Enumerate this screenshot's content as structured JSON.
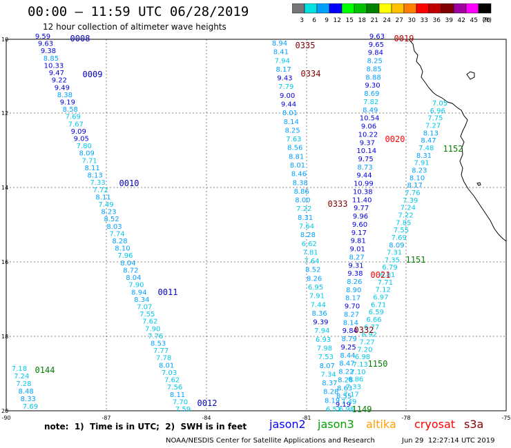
{
  "header": {
    "title": "00:00 – 11:59 UTC 06/28/2019",
    "subtitle": "12 hour collection of altimeter wave heights"
  },
  "legend": {
    "values": [
      "3",
      "6",
      "9",
      "12",
      "15",
      "18",
      "21",
      "24",
      "27",
      "30",
      "33",
      "36",
      "39",
      "42",
      "45",
      "70"
    ],
    "unit": "(ft)",
    "colors": [
      "#777777",
      "#00e0e0",
      "#00a0ff",
      "#0000ff",
      "#00ff00",
      "#00c000",
      "#008000",
      "#ffff00",
      "#ffc000",
      "#ff8000",
      "#ff0000",
      "#c00000",
      "#800000",
      "#a000a0",
      "#ff00ff",
      "#000000"
    ]
  },
  "map": {
    "lat_labels": [
      "10",
      "12",
      "14",
      "16",
      "18",
      "20"
    ],
    "lon_labels": [
      "-90",
      "-87",
      "-84",
      "-81",
      "-78",
      "-75"
    ]
  },
  "passes": [
    {
      "label": "0008",
      "color": "#0000c0"
    },
    {
      "label": "0009",
      "color": "#0000c0"
    },
    {
      "label": "0010",
      "color": "#0000c0"
    },
    {
      "label": "0011",
      "color": "#0000c0"
    },
    {
      "label": "0012",
      "color": "#0000c0"
    },
    {
      "label": "0144",
      "color": "#008000"
    },
    {
      "label": "0335",
      "color": "#800000"
    },
    {
      "label": "0334",
      "color": "#800000"
    },
    {
      "label": "0333",
      "color": "#800000"
    },
    {
      "label": "0332",
      "color": "#800000"
    },
    {
      "label": "0019",
      "color": "#c00000"
    },
    {
      "label": "0020",
      "color": "#ff0000"
    },
    {
      "label": "0021",
      "color": "#ff0000"
    },
    {
      "label": "1152",
      "color": "#008000"
    },
    {
      "label": "1151",
      "color": "#008000"
    },
    {
      "label": "1150",
      "color": "#008000"
    },
    {
      "label": "1149",
      "color": "#008000"
    }
  ],
  "tracks": [
    {
      "name": "track-a",
      "values": [
        "9.59",
        "9.63",
        "9.38",
        "8.85",
        "10.33",
        "9.47",
        "9.22",
        "9.49",
        "8.38",
        "9.19",
        "8.58",
        "7.69",
        "7.67",
        "9.09",
        "9.05",
        "7.80",
        "8.09",
        "7.71",
        "8.11",
        "8.13",
        "7.33",
        "7.72",
        "8.11",
        "7.49",
        "8.23",
        "8.52",
        "8.03",
        "7.74",
        "8.28",
        "8.10",
        "7.96",
        "8.04",
        "8.72",
        "8.04",
        "7.90",
        "8.94",
        "8.34",
        "7.07",
        "7.55",
        "7.62",
        "7.90",
        "7.76",
        "8.53",
        "7.77",
        "7.78",
        "8.01",
        "7.03",
        "7.62",
        "7.56",
        "8.11",
        "7.70",
        "7.59"
      ]
    },
    {
      "name": "track-b",
      "values": [
        "7.18",
        "7.24",
        "7.28",
        "8.48",
        "8.33",
        "7.69"
      ]
    },
    {
      "name": "track-c",
      "values": [
        "8.94",
        "8.41",
        "7.94",
        "8.17",
        "9.43",
        "7.79",
        "9.00",
        "9.44",
        "8.01",
        "8.14",
        "8.25",
        "7.63",
        "8.56",
        "8.81",
        "8.01",
        "8.46",
        "8.38",
        "8.86",
        "8.00",
        "7.22",
        "8.31",
        "7.64",
        "8.28",
        "6.62",
        "7.81",
        "7.64",
        "8.52",
        "8.26",
        "6.95",
        "7.91",
        "7.44",
        "8.36",
        "9.39",
        "7.94",
        "6.93",
        "7.98",
        "7.53",
        "8.07",
        "7.34",
        "8.37",
        "8.28",
        "8.19",
        "6.51"
      ]
    },
    {
      "name": "track-d",
      "values": [
        "9.63",
        "9.65",
        "9.84",
        "8.25",
        "8.85",
        "8.88",
        "9.30",
        "8.69",
        "7.82",
        "8.49",
        "10.54",
        "9.06",
        "10.22",
        "9.37",
        "10.14",
        "9.75",
        "8.73",
        "9.44",
        "10.99",
        "10.38",
        "11.40",
        "9.77",
        "9.96",
        "9.60",
        "9.17",
        "9.81",
        "9.01",
        "8.27",
        "9.31",
        "9.38",
        "8.26",
        "8.90",
        "8.17",
        "9.70",
        "8.27",
        "8.14",
        "9.84",
        "8.79",
        "9.25",
        "8.44",
        "8.47",
        "8.22",
        "8.28",
        "8.63",
        "8.55",
        "9.19"
      ]
    },
    {
      "name": "track-e",
      "values": [
        "7.05",
        "6.96",
        "7.75",
        "7.27",
        "8.13",
        "8.47",
        "7.48",
        "8.31",
        "7.91",
        "8.23",
        "8.10",
        "8.17",
        "7.76",
        "7.39",
        "7.24",
        "7.22",
        "7.85",
        "7.55",
        "7.69",
        "8.09",
        "7.31",
        "7.35",
        "6.79",
        "6.81",
        "7.71",
        "7.12",
        "6.97",
        "6.71",
        "6.59",
        "6.66",
        "6.77",
        "6.92",
        "7.27",
        "7.20",
        "6.98",
        "7.13",
        "7.10",
        "6.86",
        "7.33",
        "7.17",
        "7.49",
        "6.98"
      ]
    }
  ],
  "footer": {
    "note": "note:  1)  Time is in UTC;  2)  SWH is in feet",
    "credit": "NOAA/NESDIS Center for Satellite Applications and Research",
    "stamp": "Jun 29  12:27:14 UTC 2019",
    "sats": [
      {
        "name": "jason2",
        "color": "#0000ff"
      },
      {
        "name": "jason3",
        "color": "#00a000"
      },
      {
        "name": "altika",
        "color": "#ffa000"
      },
      {
        "name": "cryosat",
        "color": "#ff0000"
      },
      {
        "name": "s3a",
        "color": "#800000"
      }
    ]
  }
}
